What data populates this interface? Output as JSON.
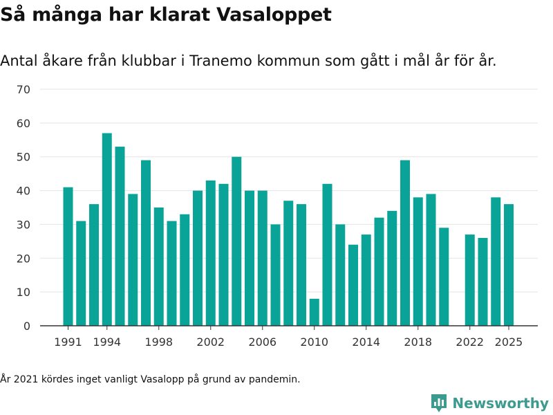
{
  "title": "Så många har klarat Vasaloppet",
  "subtitle": "Antal åkare från klubbar i Tranemo kommun som gått i mål år för år.",
  "note": "År 2021 kördes inget vanligt Vasalopp på grund av pandemin.",
  "brand": {
    "name": "Newsworthy",
    "icon": "newsworthy-logo-icon",
    "color": "#3d9a8f"
  },
  "colors": {
    "bar": "#0aa397",
    "grid": "#e3e3e3",
    "axis": "#333333"
  },
  "chart_data": {
    "type": "bar",
    "x": [
      1991,
      1992,
      1993,
      1994,
      1995,
      1996,
      1997,
      1998,
      1999,
      2000,
      2001,
      2002,
      2003,
      2004,
      2005,
      2006,
      2007,
      2008,
      2009,
      2010,
      2011,
      2012,
      2013,
      2014,
      2015,
      2016,
      2017,
      2018,
      2019,
      2020,
      2021,
      2022,
      2023,
      2024,
      2025
    ],
    "values": [
      41,
      31,
      36,
      57,
      53,
      39,
      49,
      35,
      31,
      33,
      40,
      43,
      42,
      50,
      40,
      40,
      30,
      37,
      36,
      8,
      42,
      30,
      24,
      27,
      32,
      34,
      49,
      38,
      39,
      29,
      null,
      27,
      26,
      38,
      36
    ],
    "x_tick_labels": [
      "1991",
      "1994",
      "1998",
      "2002",
      "2006",
      "2010",
      "2014",
      "2018",
      "2022",
      "2025"
    ],
    "y_ticks": [
      0,
      10,
      20,
      30,
      40,
      50,
      60,
      70
    ],
    "ylim": [
      0,
      70
    ],
    "grid": true,
    "xlabel": "",
    "ylabel": ""
  }
}
